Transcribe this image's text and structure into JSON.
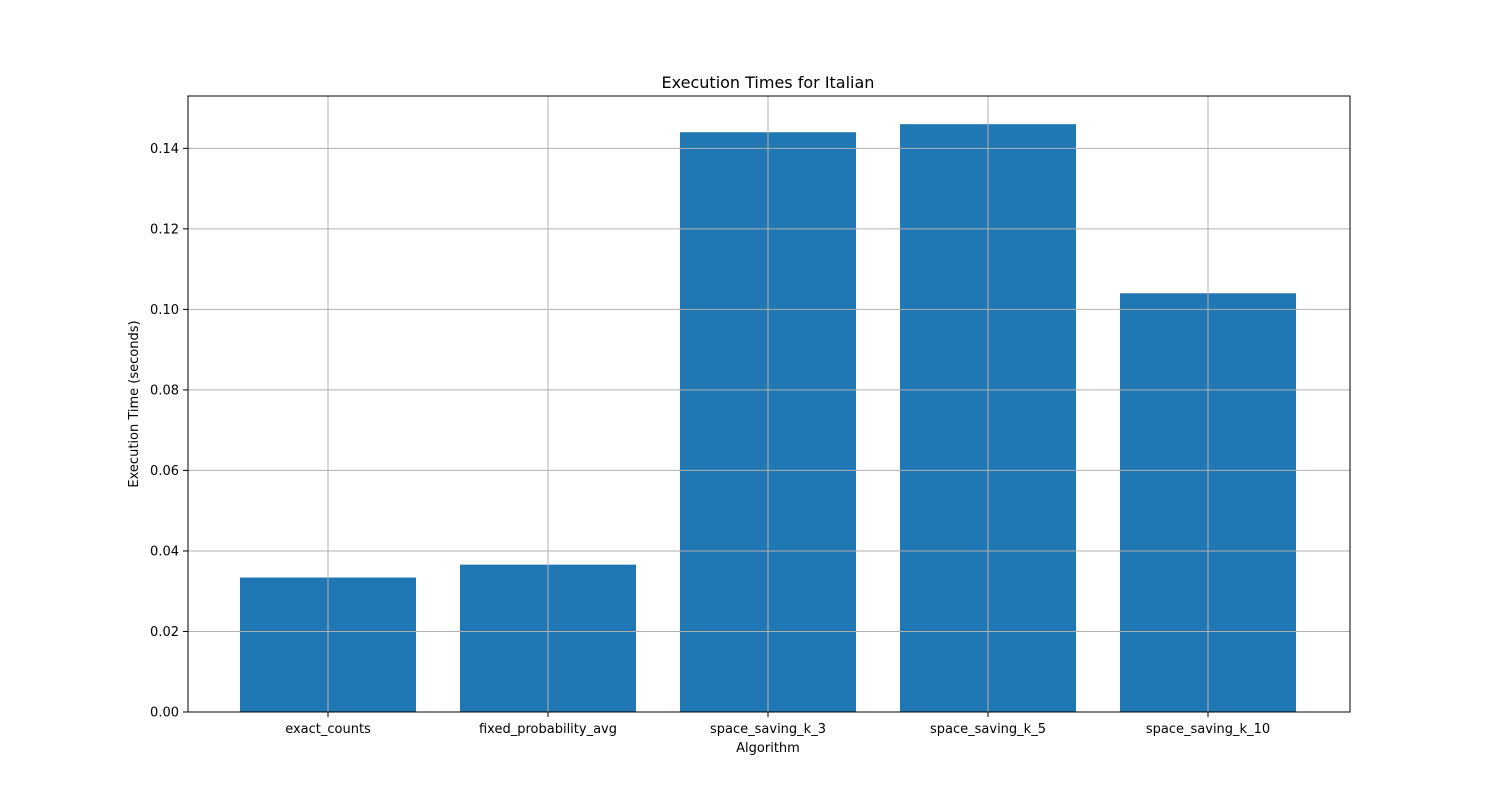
{
  "chart_data": {
    "type": "bar",
    "title": "Execution Times for Italian",
    "xlabel": "Algorithm",
    "ylabel": "Execution Time (seconds)",
    "categories": [
      "exact_counts",
      "fixed_probability_avg",
      "space_saving_k_3",
      "space_saving_k_5",
      "space_saving_k_10"
    ],
    "values": [
      0.0334,
      0.0366,
      0.144,
      0.146,
      0.104
    ],
    "ylim": [
      0,
      0.153
    ],
    "yticks": [
      0,
      0.02,
      0.04,
      0.06,
      0.08,
      0.1,
      0.12,
      0.14
    ],
    "ytick_labels": [
      "0.00",
      "0.02",
      "0.04",
      "0.06",
      "0.08",
      "0.10",
      "0.12",
      "0.14"
    ],
    "grid": true,
    "bar_color": "#1f77b4",
    "grid_color": "#b0b0b0"
  }
}
